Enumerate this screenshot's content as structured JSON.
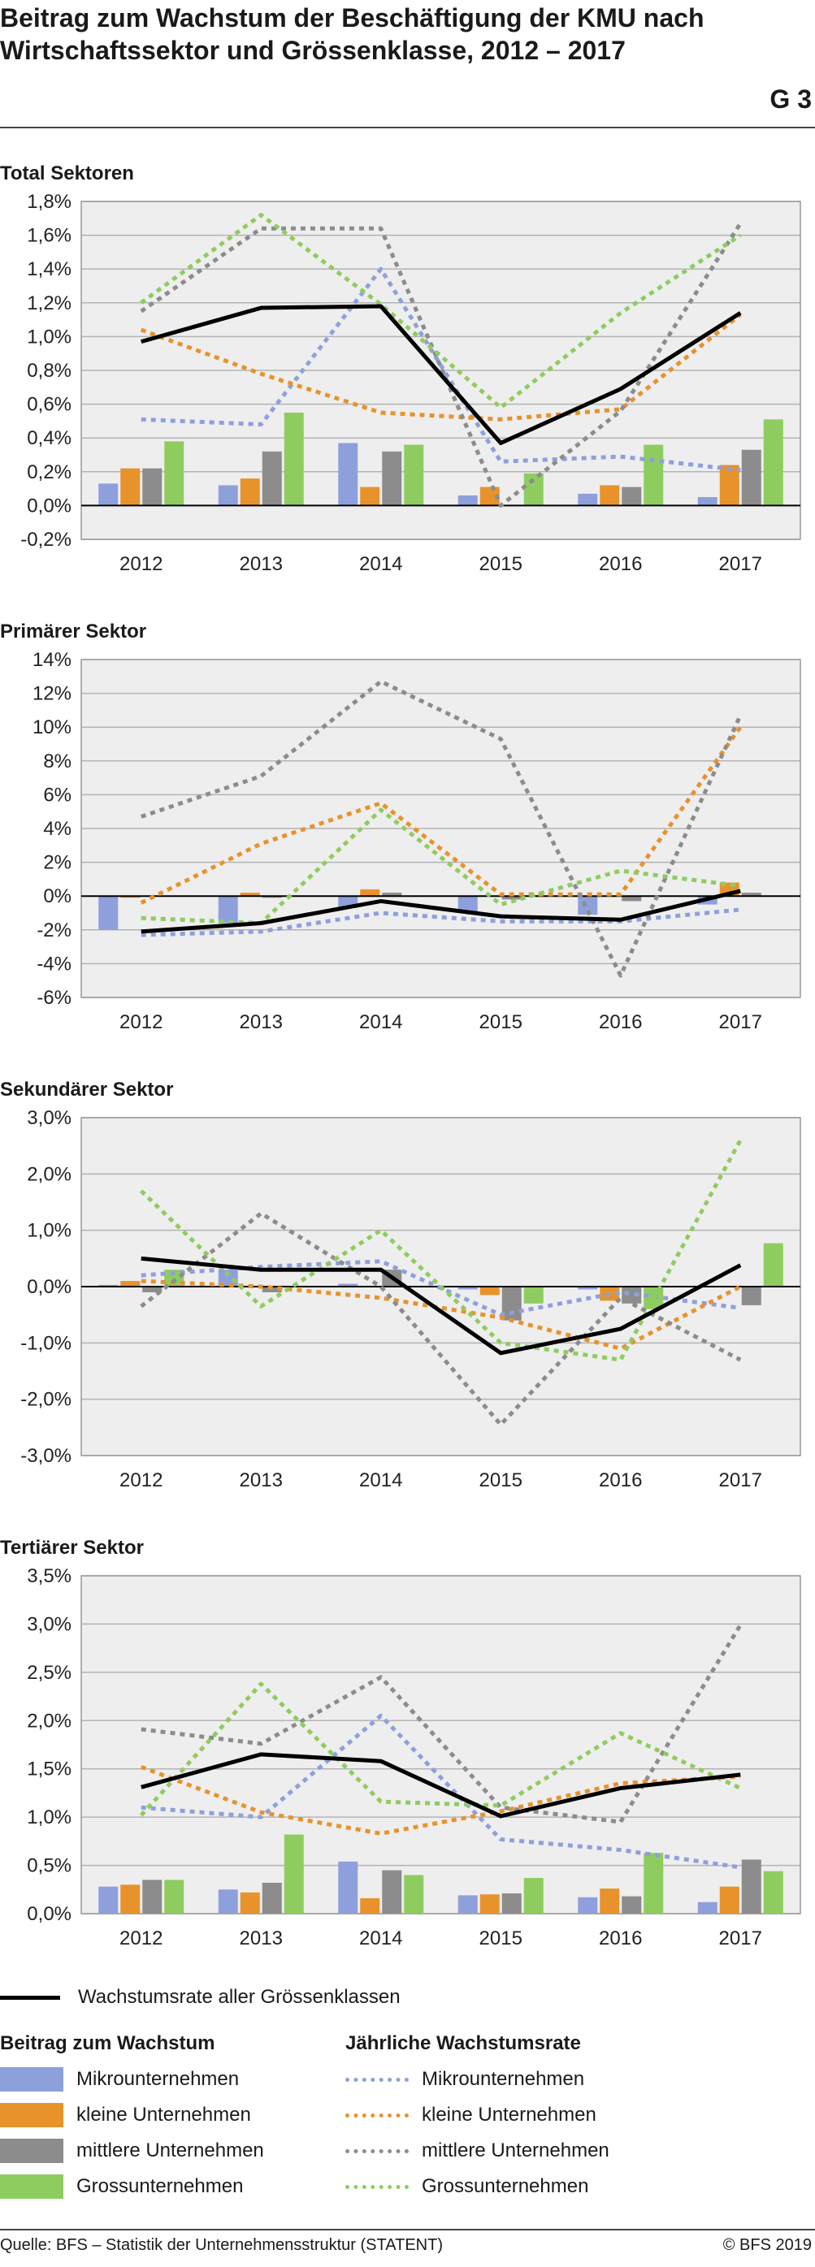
{
  "title": "Beitrag zum Wachstum der Beschäftigung der KMU nach Wirtschaftssektor und Grössenklasse, 2012 – 2017",
  "graphic_number": "G 3",
  "colors": {
    "mikro": "#8ea0dc",
    "klein": "#e8922c",
    "mittel": "#8c8c8c",
    "gross": "#8fcc60",
    "total": "#000000",
    "plot_bg": "#eeeeee"
  },
  "legend": {
    "total_line": "Wachstumsrate aller Grössenklassen",
    "bars_heading": "Beitrag zum Wachstum",
    "lines_heading": "Jährliche Wachstumsrate",
    "bars": [
      "Mikrounternehmen",
      "kleine Unternehmen",
      "mittlere Unternehmen",
      "Grossunternehmen"
    ],
    "lines": [
      "Mikrounternehmen",
      "kleine Unternehmen",
      "mittlere Unternehmen",
      "Grossunternehmen"
    ]
  },
  "footer": {
    "source": "Quelle: BFS – Statistik der Unternehmensstruktur (STATENT)",
    "copyright": "© BFS 2019"
  },
  "chart_data": [
    {
      "type": "bar",
      "title": "Total Sektoren",
      "categories": [
        "2012",
        "2013",
        "2014",
        "2015",
        "2016",
        "2017"
      ],
      "ylim": [
        -0.2,
        1.8
      ],
      "ytick_step": 0.2,
      "ytick_labels": [
        "-0,2%",
        "0,0%",
        "0,2%",
        "0,4%",
        "0,6%",
        "0,8%",
        "1,0%",
        "1,2%",
        "1,4%",
        "1,6%",
        "1,8%"
      ],
      "grid": true,
      "bars": [
        {
          "name": "Mikrounternehmen",
          "values": [
            0.13,
            0.12,
            0.37,
            0.06,
            0.07,
            0.05
          ]
        },
        {
          "name": "kleine Unternehmen",
          "values": [
            0.22,
            0.16,
            0.11,
            0.11,
            0.12,
            0.24
          ]
        },
        {
          "name": "mittlere Unternehmen",
          "values": [
            0.22,
            0.32,
            0.32,
            0.0,
            0.11,
            0.33
          ]
        },
        {
          "name": "Grossunternehmen",
          "values": [
            0.38,
            0.55,
            0.36,
            0.19,
            0.36,
            0.51
          ]
        }
      ],
      "lines": [
        {
          "name": "Mikrounternehmen",
          "values": [
            0.51,
            0.48,
            1.4,
            0.26,
            0.29,
            0.21
          ]
        },
        {
          "name": "kleine Unternehmen",
          "values": [
            1.04,
            0.78,
            0.55,
            0.51,
            0.57,
            1.13
          ]
        },
        {
          "name": "mittlere Unternehmen",
          "values": [
            1.15,
            1.64,
            1.64,
            0.0,
            0.56,
            1.67
          ]
        },
        {
          "name": "Grossunternehmen",
          "values": [
            1.2,
            1.72,
            1.19,
            0.58,
            1.14,
            1.6
          ]
        }
      ],
      "total": [
        0.97,
        1.17,
        1.18,
        0.37,
        0.69,
        1.14
      ]
    },
    {
      "type": "bar",
      "title": "Primärer Sektor",
      "categories": [
        "2012",
        "2013",
        "2014",
        "2015",
        "2016",
        "2017"
      ],
      "ylim": [
        -6,
        14
      ],
      "ytick_step": 2,
      "ytick_labels": [
        "-6%",
        "-4%",
        "-2%",
        "0%",
        "2%",
        "4%",
        "6%",
        "8%",
        "10%",
        "12%",
        "14%"
      ],
      "grid": true,
      "bars": [
        {
          "name": "Mikrounternehmen",
          "values": [
            -2.0,
            -1.6,
            -0.7,
            -1.0,
            -1.1,
            -0.5
          ]
        },
        {
          "name": "kleine Unternehmen",
          "values": [
            -0.1,
            0.2,
            0.4,
            0.0,
            0.0,
            0.8
          ]
        },
        {
          "name": "mittlere Unternehmen",
          "values": [
            0.0,
            -0.1,
            0.2,
            -0.2,
            -0.3,
            0.2
          ]
        },
        {
          "name": "Grossunternehmen",
          "values": [
            0.0,
            0.0,
            0.0,
            0.0,
            0.0,
            0.0
          ]
        }
      ],
      "lines": [
        {
          "name": "Mikrounternehmen",
          "values": [
            -2.3,
            -2.1,
            -1.0,
            -1.5,
            -1.5,
            -0.8
          ]
        },
        {
          "name": "kleine Unternehmen",
          "values": [
            -0.4,
            3.1,
            5.5,
            0.1,
            0.1,
            10.0
          ]
        },
        {
          "name": "mittlere Unternehmen",
          "values": [
            4.7,
            7.1,
            12.7,
            9.3,
            -4.7,
            10.7
          ]
        },
        {
          "name": "Grossunternehmen",
          "values": [
            -1.3,
            -1.6,
            5.1,
            -0.5,
            1.5,
            0.6
          ]
        }
      ],
      "total": [
        -2.1,
        -1.6,
        -0.3,
        -1.2,
        -1.4,
        0.3
      ]
    },
    {
      "type": "bar",
      "title": "Sekundärer Sektor",
      "categories": [
        "2012",
        "2013",
        "2014",
        "2015",
        "2016",
        "2017"
      ],
      "ylim": [
        -3.0,
        3.0
      ],
      "ytick_step": 1.0,
      "ytick_labels": [
        "-3,0%",
        "-2,0%",
        "-1,0%",
        "0,0%",
        "1,0%",
        "2,0%",
        "3,0%"
      ],
      "grid": true,
      "bars": [
        {
          "name": "Mikrounternehmen",
          "values": [
            0.03,
            0.3,
            0.05,
            -0.05,
            -0.05,
            0.0
          ]
        },
        {
          "name": "kleine Unternehmen",
          "values": [
            0.1,
            0.0,
            0.0,
            -0.15,
            -0.25,
            0.0
          ]
        },
        {
          "name": "mittlere Unternehmen",
          "values": [
            -0.1,
            -0.1,
            0.3,
            -0.6,
            -0.3,
            -0.33
          ]
        },
        {
          "name": "Grossunternehmen",
          "values": [
            0.3,
            0.0,
            0.0,
            -0.3,
            -0.4,
            0.77
          ]
        }
      ],
      "lines": [
        {
          "name": "Mikrounternehmen",
          "values": [
            0.2,
            0.35,
            0.45,
            -0.5,
            -0.1,
            -0.38
          ]
        },
        {
          "name": "kleine Unternehmen",
          "values": [
            0.1,
            0.0,
            -0.2,
            -0.55,
            -1.1,
            0.0
          ]
        },
        {
          "name": "mittlere Unternehmen",
          "values": [
            -0.35,
            1.3,
            0.0,
            -2.45,
            -0.2,
            -1.3
          ]
        },
        {
          "name": "Grossunternehmen",
          "values": [
            1.7,
            -0.35,
            1.0,
            -1.0,
            -1.3,
            2.6
          ]
        }
      ],
      "total": [
        0.5,
        0.3,
        0.3,
        -1.18,
        -0.75,
        0.38
      ]
    },
    {
      "type": "bar",
      "title": "Tertiärer Sektor",
      "categories": [
        "2012",
        "2013",
        "2014",
        "2015",
        "2016",
        "2017"
      ],
      "ylim": [
        0.0,
        3.5
      ],
      "ytick_step": 0.5,
      "ytick_labels": [
        "0,0%",
        "0,5%",
        "1,0%",
        "1,5%",
        "2,0%",
        "2,5%",
        "3,0%",
        "3,5%"
      ],
      "grid": true,
      "bars": [
        {
          "name": "Mikrounternehmen",
          "values": [
            0.28,
            0.25,
            0.54,
            0.19,
            0.17,
            0.12
          ]
        },
        {
          "name": "kleine Unternehmen",
          "values": [
            0.3,
            0.22,
            0.16,
            0.2,
            0.26,
            0.28
          ]
        },
        {
          "name": "mittlere Unternehmen",
          "values": [
            0.35,
            0.32,
            0.45,
            0.21,
            0.18,
            0.56
          ]
        },
        {
          "name": "Grossunternehmen",
          "values": [
            0.35,
            0.82,
            0.4,
            0.37,
            0.63,
            0.44
          ]
        }
      ],
      "lines": [
        {
          "name": "Mikrounternehmen",
          "values": [
            1.1,
            1.0,
            2.05,
            0.77,
            0.66,
            0.48
          ]
        },
        {
          "name": "kleine Unternehmen",
          "values": [
            1.52,
            1.05,
            0.83,
            1.06,
            1.35,
            1.42
          ]
        },
        {
          "name": "mittlere Unternehmen",
          "values": [
            1.91,
            1.76,
            2.45,
            1.1,
            0.95,
            2.99
          ]
        },
        {
          "name": "Grossunternehmen",
          "values": [
            1.02,
            2.38,
            1.16,
            1.12,
            1.87,
            1.3
          ]
        }
      ],
      "total": [
        1.31,
        1.65,
        1.58,
        1.01,
        1.3,
        1.44
      ]
    }
  ]
}
